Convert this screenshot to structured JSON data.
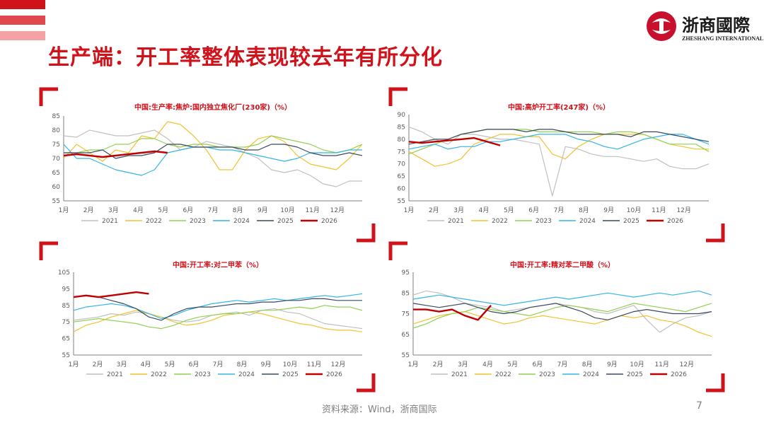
{
  "title": "生产端：开工率整体表现较去年有所分化",
  "logo": {
    "cn": "浙商國際",
    "en": "ZHESHANG INTERNATIONAL"
  },
  "footer": "资料来源：Wind，浙商国际",
  "page_number": "7",
  "colors": {
    "accent": "#d0121b",
    "2021": "#bfbfbf",
    "2022": "#f2c230",
    "2023": "#92d050",
    "2024": "#33b5e5",
    "2025": "#3a4a5e",
    "2026": "#c00000"
  },
  "chart_data": [
    {
      "type": "line",
      "title": "中国:生产率:焦炉:国内独立焦化厂(230家)（%）",
      "months": [
        "1月",
        "2月",
        "3月",
        "4月",
        "5月",
        "6月",
        "7月",
        "8月",
        "9月",
        "10月",
        "11月",
        "12月"
      ],
      "ylim": [
        55,
        85
      ],
      "yticks": [
        55,
        60,
        65,
        70,
        75,
        80,
        85
      ],
      "series": [
        {
          "name": "2021",
          "values": [
            78,
            77.5,
            80,
            79,
            78,
            78,
            79,
            80,
            77,
            73,
            74,
            76,
            75,
            74,
            72,
            70,
            66,
            65,
            66,
            64,
            61,
            60,
            62,
            62
          ]
        },
        {
          "name": "2022",
          "values": [
            70,
            75,
            72,
            69,
            73,
            72,
            78,
            77,
            83,
            82,
            78,
            73,
            66,
            66,
            73,
            77,
            78,
            76,
            71,
            68,
            67,
            66,
            70,
            75
          ]
        },
        {
          "name": "2023",
          "values": [
            72,
            72,
            73,
            73,
            75,
            75,
            77,
            77,
            75,
            74,
            75,
            75,
            74,
            74,
            74,
            75,
            78,
            77,
            76,
            75,
            73,
            72,
            73,
            75
          ]
        },
        {
          "name": "2024",
          "values": [
            75,
            70,
            70,
            68,
            66,
            65,
            64,
            66,
            72,
            73,
            74,
            74,
            73,
            73,
            72,
            71,
            70,
            69,
            70,
            72,
            72,
            72,
            73,
            73
          ]
        },
        {
          "name": "2025",
          "values": [
            72,
            72,
            72,
            73,
            70,
            71,
            71,
            72,
            75,
            75,
            74,
            74,
            74,
            74,
            73,
            73,
            75,
            75,
            74,
            72,
            71,
            71,
            72,
            71
          ]
        },
        {
          "name": "2026",
          "values": [
            71,
            71.5,
            71,
            70.5,
            71,
            71.5,
            72,
            72.5,
            72
          ]
        }
      ]
    },
    {
      "type": "line",
      "title": "中国:高炉开工率(247家)（%）",
      "months": [
        "1月",
        "2月",
        "3月",
        "4月",
        "5月",
        "6月",
        "7月",
        "8月",
        "9月",
        "10月",
        "11月",
        "12月"
      ],
      "ylim": [
        55,
        90
      ],
      "yticks": [
        55,
        60,
        65,
        70,
        75,
        80,
        85,
        90
      ],
      "series": [
        {
          "name": "2021",
          "values": [
            85,
            83,
            80,
            78,
            82,
            82,
            81,
            80,
            80,
            79,
            78,
            57,
            77,
            76,
            74,
            73,
            73,
            72,
            71,
            72,
            69,
            68,
            68,
            70
          ]
        },
        {
          "name": "2022",
          "values": [
            75,
            72,
            69,
            70,
            72,
            78,
            80,
            82,
            82,
            81,
            81,
            74,
            72,
            77,
            80,
            82,
            82,
            82,
            82,
            80,
            78,
            77,
            76,
            76
          ]
        },
        {
          "name": "2023",
          "values": [
            74,
            76,
            78,
            80,
            82,
            83,
            84,
            84,
            84,
            84,
            83,
            83,
            83,
            83,
            83,
            82,
            83,
            83,
            82,
            80,
            78,
            78,
            78,
            75
          ]
        },
        {
          "name": "2024",
          "values": [
            76,
            77,
            78,
            76,
            77,
            77,
            79,
            79,
            80,
            81,
            82,
            82,
            82,
            80,
            79,
            77,
            76,
            78,
            80,
            81,
            82,
            82,
            80,
            78
          ]
        },
        {
          "name": "2025",
          "values": [
            78,
            79,
            80,
            80,
            82,
            83,
            84,
            84,
            84,
            83,
            84,
            84,
            83,
            82,
            82,
            82,
            82,
            81,
            83,
            83,
            82,
            81,
            80,
            79
          ]
        },
        {
          "name": "2026",
          "values": [
            79,
            78.5,
            79,
            79.5,
            80,
            80.5,
            79,
            77.5
          ]
        }
      ]
    },
    {
      "type": "line",
      "title": "中国:开工率:对二甲苯（%）",
      "months": [
        "1月",
        "2月",
        "3月",
        "4月",
        "5月",
        "6月",
        "7月",
        "8月",
        "9月",
        "10月",
        "11月",
        "12月"
      ],
      "ylim": [
        55,
        105
      ],
      "yticks": [
        55,
        65,
        75,
        85,
        95,
        105
      ],
      "series": [
        {
          "name": "2021",
          "values": [
            76,
            77,
            78,
            80,
            79,
            81,
            80,
            78,
            76,
            75,
            76,
            79,
            80,
            81,
            79,
            82,
            83,
            81,
            80,
            77,
            74,
            73,
            72,
            71
          ]
        },
        {
          "name": "2022",
          "values": [
            69,
            73,
            75,
            78,
            80,
            82,
            80,
            78,
            75,
            73,
            74,
            76,
            79,
            80,
            81,
            80,
            78,
            76,
            74,
            73,
            71,
            70,
            70,
            69
          ]
        },
        {
          "name": "2023",
          "values": [
            75,
            76,
            77,
            76,
            75,
            74,
            72,
            71,
            73,
            76,
            78,
            79,
            80,
            80,
            81,
            82,
            82,
            83,
            84,
            83,
            85,
            84,
            84,
            82
          ]
        },
        {
          "name": "2024",
          "values": [
            82,
            84,
            85,
            86,
            85,
            83,
            80,
            77,
            79,
            82,
            84,
            86,
            87,
            88,
            87,
            88,
            89,
            88,
            89,
            90,
            91,
            90,
            91,
            92
          ]
        },
        {
          "name": "2025",
          "values": [
            90,
            91,
            90,
            88,
            86,
            83,
            78,
            76,
            80,
            83,
            84,
            84,
            85,
            86,
            86,
            87,
            87,
            88,
            88,
            89,
            89,
            88,
            88,
            88
          ]
        },
        {
          "name": "2026",
          "values": [
            90,
            91,
            90,
            91,
            92,
            93,
            92
          ]
        }
      ]
    },
    {
      "type": "line",
      "title": "中国:开工率:精对苯二甲酸（%）",
      "months": [
        "1月",
        "2月",
        "3月",
        "4月",
        "5月",
        "6月",
        "7月",
        "8月",
        "9月",
        "10月",
        "11月",
        "12月"
      ],
      "ylim": [
        55,
        95
      ],
      "yticks": [
        55,
        65,
        75,
        85,
        95
      ],
      "series": [
        {
          "name": "2021",
          "values": [
            84,
            86,
            85,
            83,
            80,
            79,
            78,
            76,
            77,
            78,
            79,
            80,
            79,
            78,
            76,
            75,
            77,
            79,
            72,
            66,
            70,
            73,
            74,
            76
          ]
        },
        {
          "name": "2022",
          "values": [
            70,
            72,
            74,
            75,
            76,
            74,
            72,
            70,
            71,
            73,
            74,
            73,
            72,
            71,
            70,
            72,
            74,
            73,
            74,
            72,
            71,
            69,
            66,
            64
          ]
        },
        {
          "name": "2023",
          "values": [
            68,
            70,
            73,
            75,
            76,
            78,
            77,
            76,
            75,
            74,
            76,
            78,
            79,
            78,
            77,
            76,
            78,
            80,
            79,
            78,
            77,
            76,
            78,
            80
          ]
        },
        {
          "name": "2024",
          "values": [
            82,
            83,
            84,
            83,
            82,
            81,
            80,
            79,
            80,
            81,
            82,
            83,
            82,
            83,
            84,
            85,
            84,
            83,
            84,
            85,
            84,
            85,
            86,
            84
          ]
        },
        {
          "name": "2025",
          "values": [
            80,
            79,
            78,
            79,
            80,
            78,
            76,
            75,
            76,
            78,
            79,
            80,
            78,
            76,
            73,
            72,
            74,
            76,
            77,
            76,
            75,
            75,
            75,
            76
          ]
        },
        {
          "name": "2026",
          "values": [
            77,
            77,
            76,
            77,
            74,
            72,
            79
          ]
        }
      ]
    }
  ]
}
